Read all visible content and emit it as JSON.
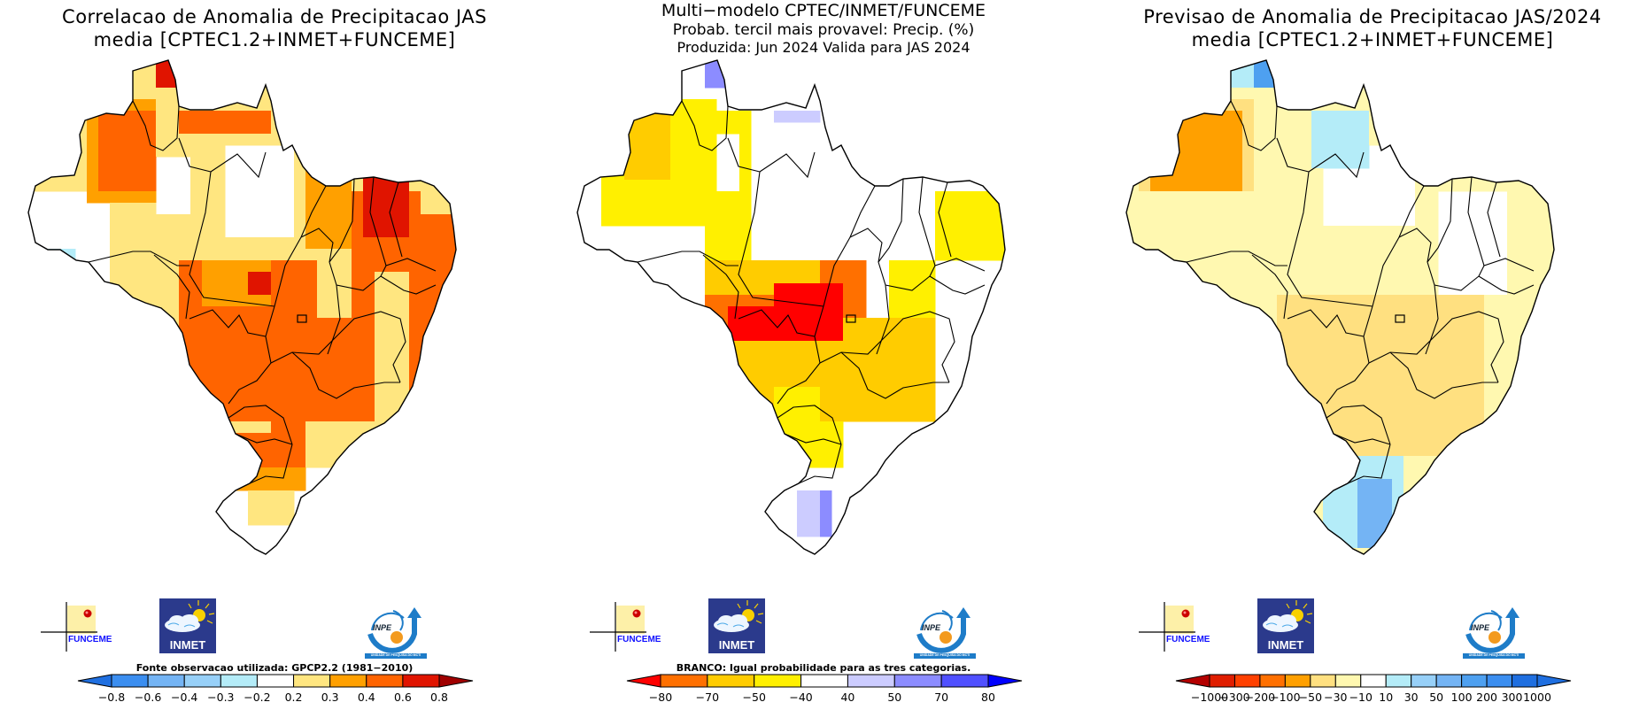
{
  "page": {
    "panels": [
      {
        "id": "correlation",
        "title_lines": [
          "Correlacao de Anomalia de Precipitacao JAS",
          "media [CPTEC1.2+INMET+FUNCEME]"
        ],
        "colorbar_note": "Fonte observacao utilizada: GPCP2.2 (1981−2010)"
      },
      {
        "id": "tercile-probability",
        "title_lines": [
          "Multi−modelo CPTEC/INMET/FUNCEME",
          "Probab. tercil mais provavel: Precip. (%)",
          "Produzida: Jun 2024  Valida para JAS 2024"
        ],
        "colorbar_note": "BRANCO: Igual probabilidade para as tres categorias."
      },
      {
        "id": "anomaly-forecast",
        "title_lines": [
          "Previsao de Anomalia de Precipitacao JAS/2024",
          "media [CPTEC1.2+INMET+FUNCEME]"
        ],
        "colorbar_note": ""
      }
    ],
    "logos": {
      "funceme": "FUNCEME",
      "inmet": "INMET",
      "inpe": "INPE",
      "inpe_sub": "UNIDADE DE PESQUISA DO MCTI"
    }
  },
  "chart_data": [
    {
      "type": "heatmap",
      "title": "Correlacao de Anomalia de Precipitacao JAS — media [CPTEC1.2+INMET+FUNCEME]",
      "region": "Brazil",
      "variable": "Correlation of precipitation anomaly (JAS)",
      "observation_source": "GPCP2.2 (1981-2010)",
      "colorbar": {
        "tick_labels": [
          "-0.8",
          "-0.6",
          "-0.4",
          "-0.3",
          "-0.2",
          "0.2",
          "0.3",
          "0.4",
          "0.6",
          "0.8"
        ],
        "levels": [
          -0.8,
          -0.6,
          -0.4,
          -0.3,
          -0.2,
          0.2,
          0.3,
          0.4,
          0.6,
          0.8
        ],
        "colors": [
          "#1f6fe0",
          "#3b8ef0",
          "#74b4f4",
          "#97d0f8",
          "#b4ecf8",
          "#ffffff",
          "#ffe680",
          "#ffa000",
          "#ff6400",
          "#e01400",
          "#a00000"
        ],
        "extend": "both"
      },
      "regions_summary": [
        {
          "area": "Ceara / Rio Grande do Norte (NE coast)",
          "range": "0.6 to 0.8"
        },
        {
          "area": "Roraima north tip",
          "range": "0.6 to 0.8"
        },
        {
          "area": "Northern Amazonas",
          "range": "0.4 to 0.6"
        },
        {
          "area": "Central-west / Mato Grosso / Goias / Minas Gerais",
          "range": "0.4 to 0.6"
        },
        {
          "area": "Central Para",
          "range": "-0.2 to 0.2"
        },
        {
          "area": "Western Amazonas / Acre",
          "range": "-0.2 to 0.2"
        },
        {
          "area": "Rio Grande do Sul",
          "range": "-0.2 to 0.2"
        },
        {
          "area": "Acre small patch",
          "range": "-0.3 to -0.2"
        }
      ]
    },
    {
      "type": "heatmap",
      "title": "Multi-modelo CPTEC/INMET/FUNCEME — Probab. tercil mais provavel: Precip. (%)",
      "produced": "Jun 2024",
      "valid_for": "JAS 2024",
      "note": "BRANCO: Igual probabilidade para as tres categorias.",
      "colorbar": {
        "tick_labels": [
          "-80",
          "-70",
          "-50",
          "-40",
          "40",
          "50",
          "70",
          "80"
        ],
        "levels": [
          -80,
          -70,
          -50,
          -40,
          40,
          50,
          70,
          80
        ],
        "colors": [
          "#ff0000",
          "#ff7000",
          "#ffcc00",
          "#fff000",
          "#ffffff",
          "#ccccff",
          "#8c8cff",
          "#5050ff",
          "#0000ff"
        ],
        "extend": "both"
      },
      "regions_summary": [
        {
          "area": "Mato Grosso / Tocantins / Goias north",
          "range": "-80 to -70 (below normal)"
        },
        {
          "area": "Western Amazonas",
          "range": "-70 to -50"
        },
        {
          "area": "Minas Gerais / Goias / Sao Paulo",
          "range": "-70 to -50"
        },
        {
          "area": "Parana / Sao Paulo south",
          "range": "-50 to -40"
        },
        {
          "area": "Santa Catarina / Rio Grande do Sul east",
          "range": "40 to 70 (above normal)"
        },
        {
          "area": "Roraima north / Amapa",
          "range": "40 to 70"
        },
        {
          "area": "Para / Maranhao / Piaui",
          "range": "equal probability (white)"
        }
      ]
    },
    {
      "type": "heatmap",
      "title": "Previsao de Anomalia de Precipitacao JAS/2024 — media [CPTEC1.2+INMET+FUNCEME]",
      "variable": "Precipitation anomaly forecast (mm)",
      "colorbar": {
        "tick_labels": [
          "-1000",
          "-300",
          "-200",
          "-100",
          "-50",
          "-30",
          "-10",
          "10",
          "30",
          "50",
          "100",
          "200",
          "300",
          "1000"
        ],
        "levels": [
          -1000,
          -300,
          -200,
          -100,
          -50,
          -30,
          -10,
          10,
          30,
          50,
          100,
          200,
          300,
          1000
        ],
        "colors": [
          "#b40000",
          "#e01e00",
          "#ff4000",
          "#ff7000",
          "#ffa000",
          "#ffe080",
          "#fff8b0",
          "#ffffff",
          "#b4ecf8",
          "#97d0f8",
          "#74b4f4",
          "#4ea0f0",
          "#3b8ef0",
          "#1f6fe0",
          "#1f6fe0"
        ],
        "extend": "both"
      },
      "regions_summary": [
        {
          "area": "Northern Amazonas",
          "range": "-100 to -50"
        },
        {
          "area": "Most of central Brazil",
          "range": "-30 to -10 / -50 to -30"
        },
        {
          "area": "Rio Grande do Sul / Santa Catarina",
          "range": "10 to 50"
        },
        {
          "area": "Amapa / Roraima north",
          "range": "10 to 50"
        },
        {
          "area": "Maranhao / Piaui",
          "range": "-10 to 10 (white)"
        }
      ]
    }
  ]
}
